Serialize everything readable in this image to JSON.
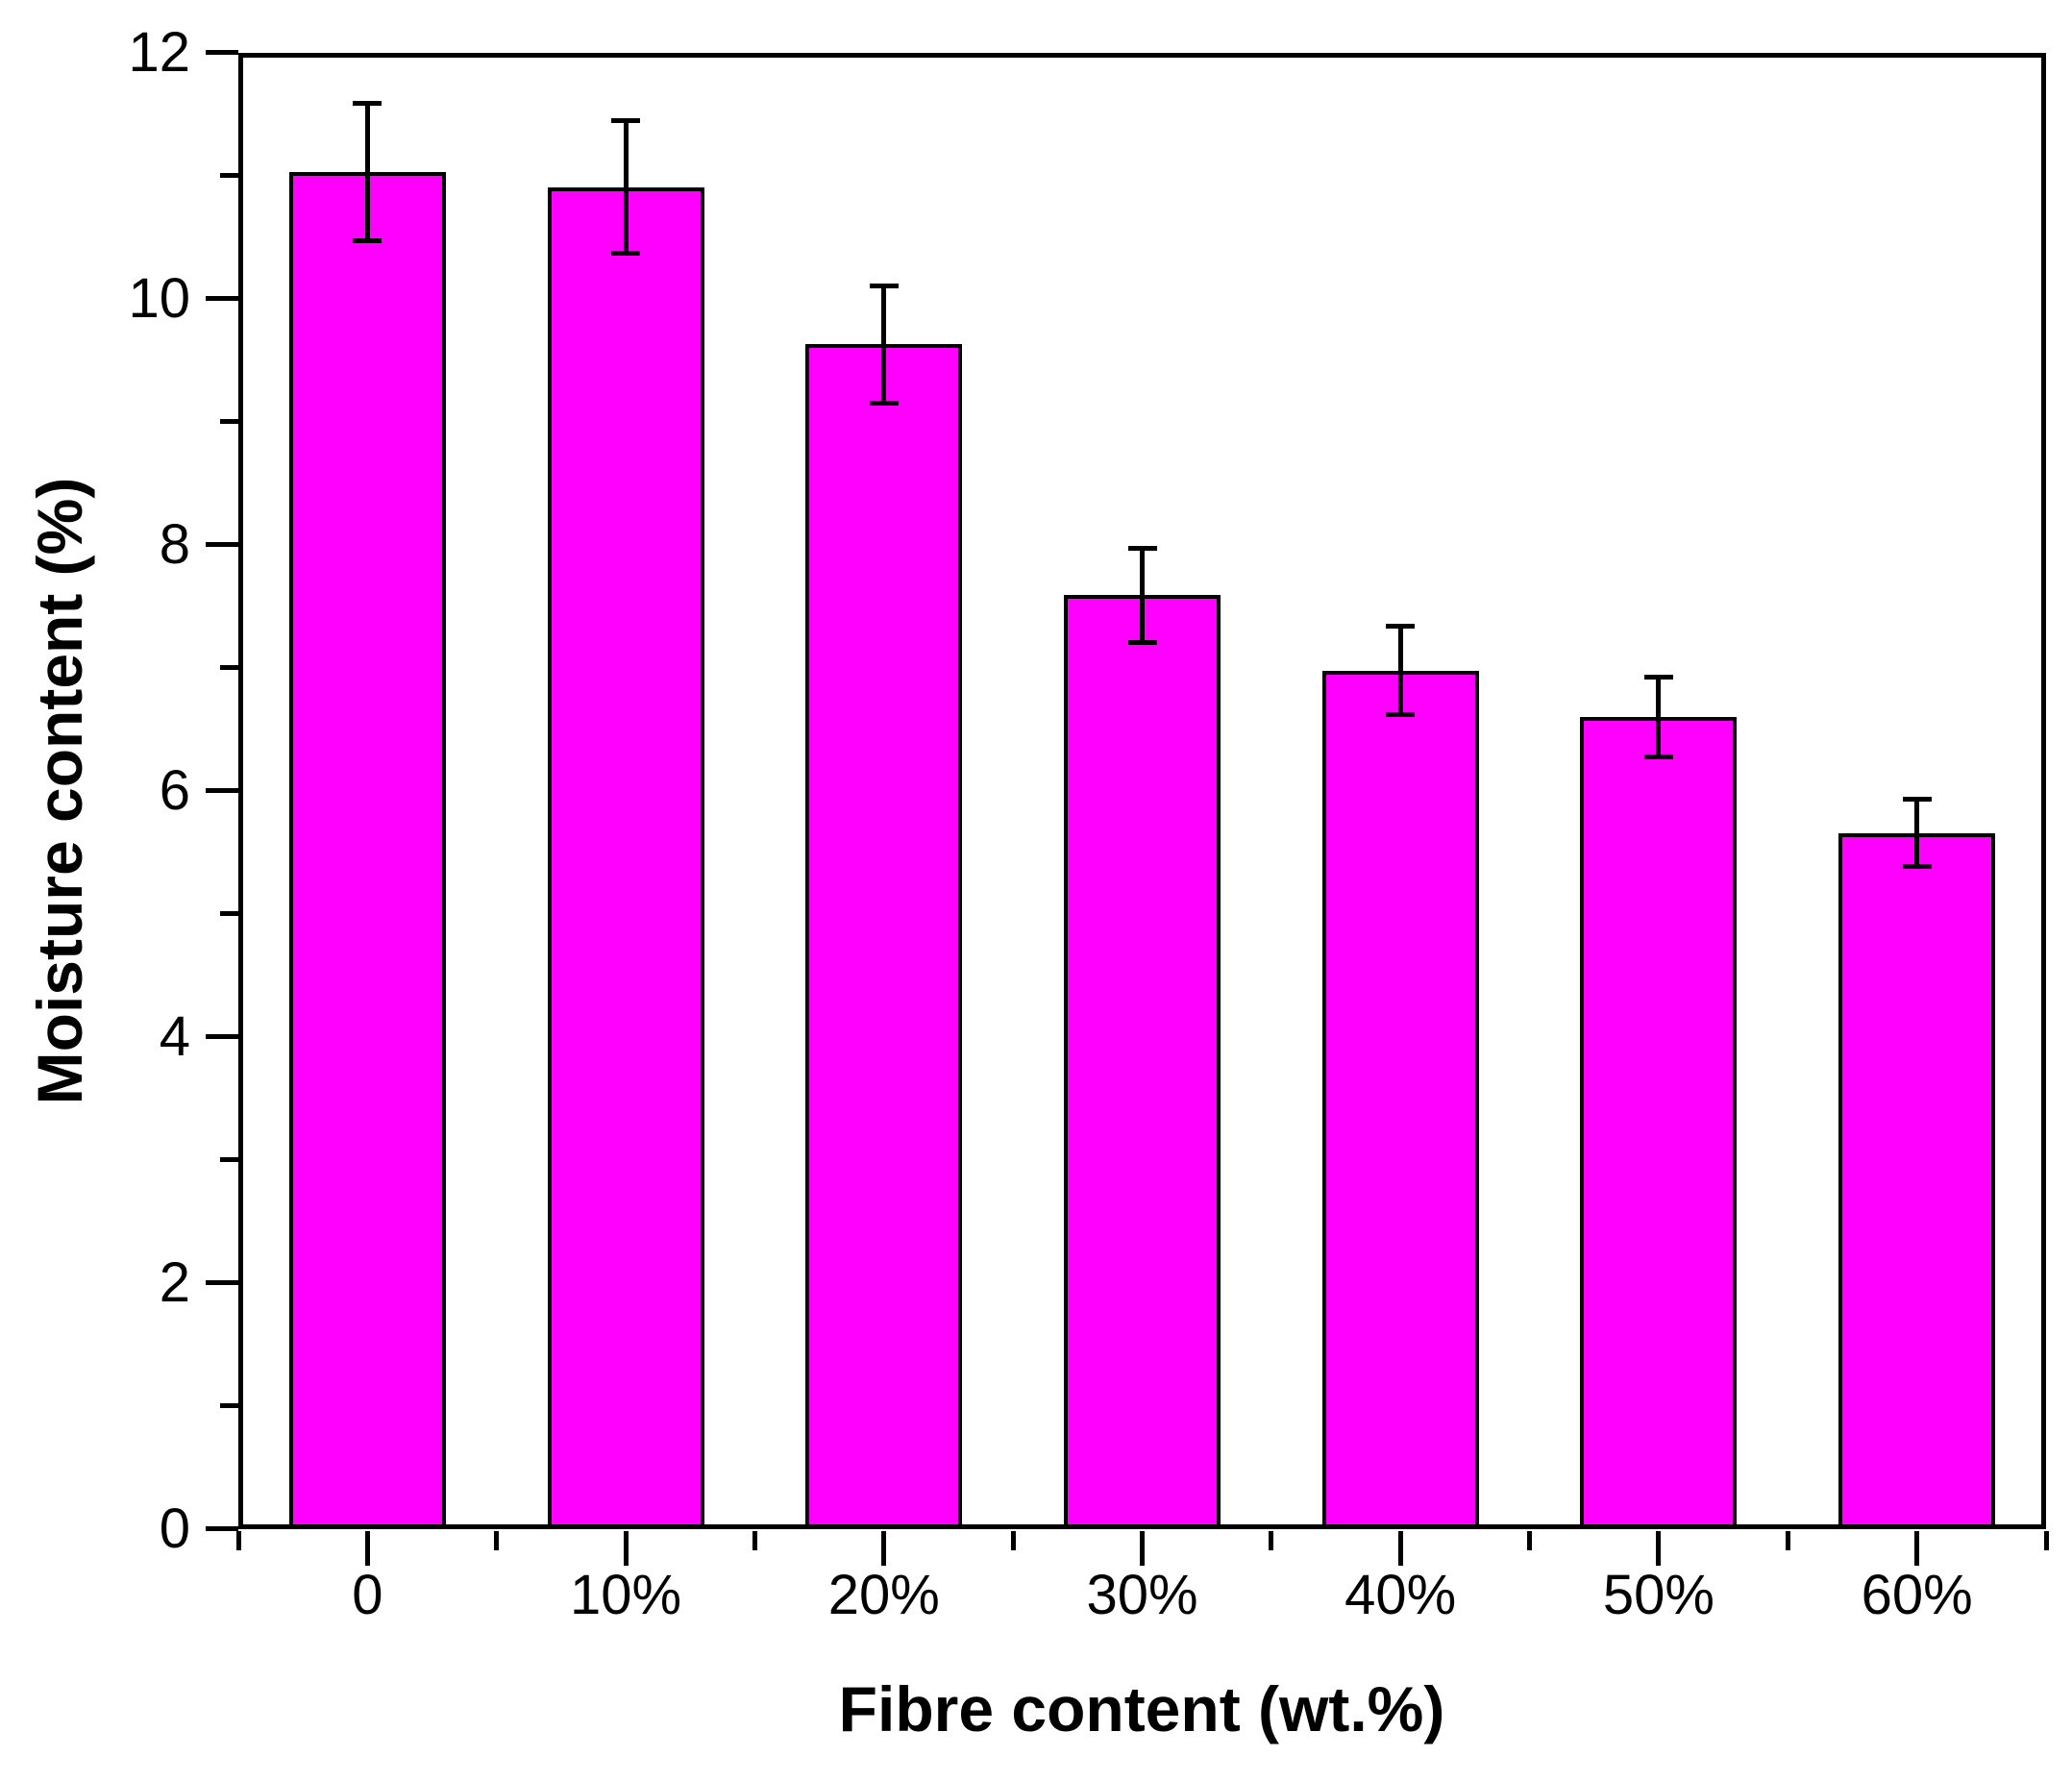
{
  "figure": {
    "background": "#ffffff"
  },
  "chart_data": {
    "type": "bar",
    "title": "",
    "categories": [
      "0",
      "10%",
      "20%",
      "30%",
      "40%",
      "50%",
      "60%"
    ],
    "values": [
      11.03,
      10.91,
      9.63,
      7.59,
      6.98,
      6.6,
      5.66
    ],
    "error_bars": [
      0.56,
      0.54,
      0.48,
      0.39,
      0.36,
      0.33,
      0.28
    ],
    "xlabel": "Fibre content (wt.%)",
    "ylabel": "Moisture content (%)",
    "ylim": [
      0,
      12
    ],
    "y_tick_values": [
      0,
      2,
      4,
      6,
      8,
      10,
      12
    ],
    "y_tick_labels": [
      "0",
      "2",
      "4",
      "6",
      "8",
      "10",
      "12"
    ],
    "y_minor_tick_values": [
      1,
      3,
      5,
      7,
      9,
      11
    ],
    "bar_color": "#FF00FF",
    "bar_edge_color": "#000000",
    "error_bar_color": "#000000",
    "axis_color": "#000000",
    "text_color": "#000000",
    "grid": "off",
    "legend": "none"
  }
}
